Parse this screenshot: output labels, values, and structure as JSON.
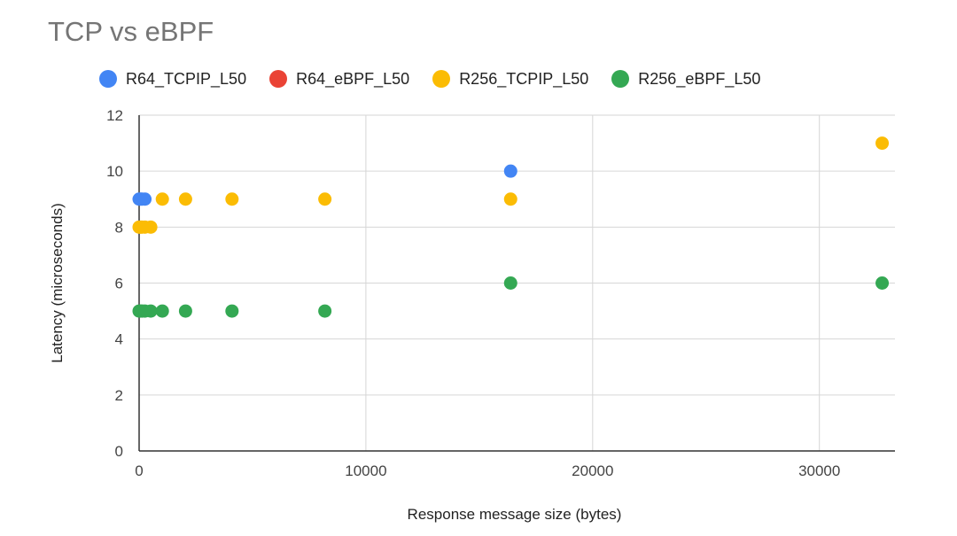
{
  "chart_data": {
    "type": "scatter",
    "title": "TCP vs eBPF",
    "xlabel": "Response message size (bytes)",
    "ylabel": "Latency (microseconds)",
    "xlim": [
      0,
      33333
    ],
    "ylim": [
      0,
      12
    ],
    "x_ticks": [
      0,
      10000,
      20000,
      30000
    ],
    "y_ticks": [
      0,
      2,
      4,
      6,
      8,
      10,
      12
    ],
    "grid": true,
    "legend_position": "top",
    "series": [
      {
        "name": "R64_TCPIP_L50",
        "color": "#4285f4",
        "points": [
          [
            0,
            9
          ],
          [
            64,
            9
          ],
          [
            128,
            9
          ],
          [
            256,
            9
          ],
          [
            16384,
            10
          ]
        ]
      },
      {
        "name": "R64_eBPF_L50",
        "color": "#ea4335",
        "points": []
      },
      {
        "name": "R256_TCPIP_L50",
        "color": "#fbbc04",
        "points": [
          [
            0,
            8
          ],
          [
            64,
            8
          ],
          [
            128,
            8
          ],
          [
            256,
            8
          ],
          [
            512,
            8
          ],
          [
            1024,
            9
          ],
          [
            2048,
            9
          ],
          [
            4096,
            9
          ],
          [
            8192,
            9
          ],
          [
            16384,
            9
          ],
          [
            32768,
            11
          ]
        ]
      },
      {
        "name": "R256_eBPF_L50",
        "color": "#34a853",
        "points": [
          [
            0,
            5
          ],
          [
            64,
            5
          ],
          [
            128,
            5
          ],
          [
            256,
            5
          ],
          [
            512,
            5
          ],
          [
            1024,
            5
          ],
          [
            2048,
            5
          ],
          [
            4096,
            5
          ],
          [
            8192,
            5
          ],
          [
            16384,
            6
          ],
          [
            32768,
            6
          ]
        ]
      }
    ]
  }
}
